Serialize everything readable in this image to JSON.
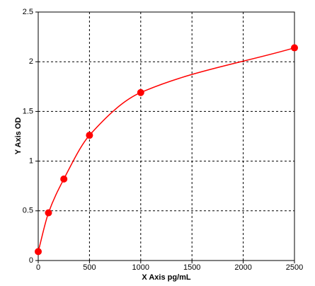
{
  "chart_data": {
    "type": "scatter",
    "xlabel": "X Axis pg/mL",
    "ylabel": "Y Axis OD",
    "x": [
      0,
      100,
      250,
      500,
      1000,
      2500
    ],
    "series": [
      {
        "color": "#ff0000",
        "values": [
          0.09,
          0.48,
          0.82,
          1.26,
          1.69,
          2.14
        ]
      }
    ],
    "xlim": [
      0,
      2500
    ],
    "xticks": [
      0,
      500,
      1000,
      1500,
      2000,
      2500
    ],
    "ylim": [
      0,
      2.5
    ],
    "yticks": [
      0,
      0.5,
      1,
      1.5,
      2,
      2.5
    ],
    "grid": true
  }
}
